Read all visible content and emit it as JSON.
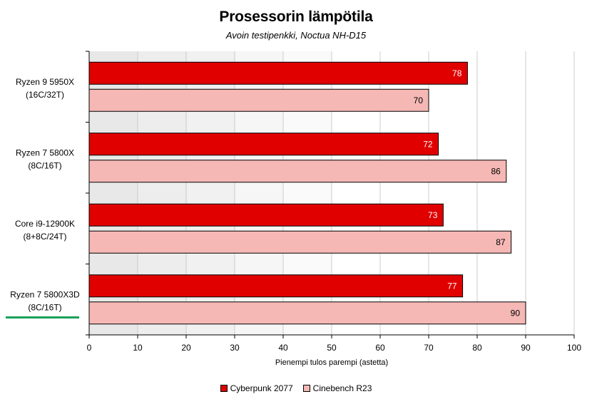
{
  "colors": {
    "series1": "#e00000",
    "series2": "#f5b8b5",
    "bar_border": "#000000",
    "plot_shade": "#e6e6e6",
    "gridline": "#cccccc",
    "highlight": "#1aa05a"
  },
  "chart_data": {
    "type": "bar",
    "orientation": "horizontal",
    "title": "Prosessorin lämpötila",
    "subtitle": "Avoin testipenkki, Noctua NH-D15",
    "xlabel": "Pienempi tulos parempi (astetta)",
    "xlim": [
      0,
      100
    ],
    "xticks": [
      "0",
      "10",
      "20",
      "30",
      "40",
      "50",
      "60",
      "70",
      "80",
      "90",
      "100"
    ],
    "grid": "vertical",
    "legend_position": "bottom",
    "categories": [
      {
        "line1": "Ryzen 9 5950X",
        "line2": "(16C/32T)"
      },
      {
        "line1": "Ryzen 7 5800X",
        "line2": "(8C/16T)"
      },
      {
        "line1": "Core i9-12900K",
        "line2": "(8+8C/24T)"
      },
      {
        "line1": "Ryzen 7 5800X3D",
        "line2": "(8C/16T)"
      }
    ],
    "series": [
      {
        "name": "Cyberpunk 2077",
        "values": [
          78,
          72,
          73,
          77
        ]
      },
      {
        "name": "Cinebench R23",
        "values": [
          70,
          86,
          87,
          90
        ]
      }
    ]
  }
}
